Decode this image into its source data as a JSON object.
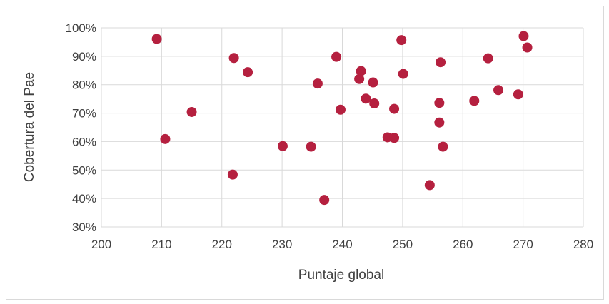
{
  "chart_data": {
    "type": "scatter",
    "xlabel": "Puntaje global",
    "ylabel": "Cobertura del Pae",
    "xlim": [
      200,
      280
    ],
    "ylim": [
      0.3,
      1.0
    ],
    "x_ticks": [
      "200",
      "210",
      "220",
      "230",
      "240",
      "250",
      "260",
      "270",
      "280"
    ],
    "y_ticks": [
      "30%",
      "40%",
      "50%",
      "60%",
      "70%",
      "80%",
      "90%",
      "100%"
    ],
    "grid": true,
    "legend": "none",
    "marker_color": "#b5203f",
    "points": [
      {
        "x": 209.2,
        "y": 0.961
      },
      {
        "x": 210.6,
        "y": 0.609
      },
      {
        "x": 215.0,
        "y": 0.704
      },
      {
        "x": 221.8,
        "y": 0.484
      },
      {
        "x": 222.0,
        "y": 0.894
      },
      {
        "x": 224.3,
        "y": 0.844
      },
      {
        "x": 230.1,
        "y": 0.584
      },
      {
        "x": 234.8,
        "y": 0.582
      },
      {
        "x": 235.9,
        "y": 0.804
      },
      {
        "x": 237.0,
        "y": 0.395
      },
      {
        "x": 239.0,
        "y": 0.898
      },
      {
        "x": 239.7,
        "y": 0.712
      },
      {
        "x": 242.8,
        "y": 0.82
      },
      {
        "x": 243.1,
        "y": 0.848
      },
      {
        "x": 243.9,
        "y": 0.751
      },
      {
        "x": 245.1,
        "y": 0.808
      },
      {
        "x": 245.3,
        "y": 0.734
      },
      {
        "x": 247.5,
        "y": 0.615
      },
      {
        "x": 248.6,
        "y": 0.613
      },
      {
        "x": 248.6,
        "y": 0.715
      },
      {
        "x": 249.8,
        "y": 0.957
      },
      {
        "x": 250.1,
        "y": 0.838
      },
      {
        "x": 254.5,
        "y": 0.447
      },
      {
        "x": 256.1,
        "y": 0.736
      },
      {
        "x": 256.1,
        "y": 0.667
      },
      {
        "x": 256.3,
        "y": 0.879
      },
      {
        "x": 256.7,
        "y": 0.582
      },
      {
        "x": 261.9,
        "y": 0.743
      },
      {
        "x": 264.2,
        "y": 0.893
      },
      {
        "x": 265.9,
        "y": 0.781
      },
      {
        "x": 269.2,
        "y": 0.766
      },
      {
        "x": 270.1,
        "y": 0.971
      },
      {
        "x": 270.7,
        "y": 0.931
      }
    ]
  }
}
